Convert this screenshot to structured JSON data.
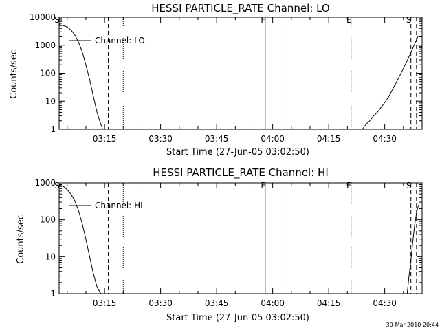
{
  "chart_data": [
    {
      "type": "line",
      "title": "HESSI PARTICLE_RATE Channel: LO",
      "xlabel": "Start Time (27-Jun-05 03:02:50)",
      "ylabel": "Counts/sec",
      "yscale": "log",
      "ylim": [
        1,
        10000
      ],
      "xlim": [
        "03:02:50",
        "04:40:00"
      ],
      "grid": false,
      "legend": {
        "position": "top-left",
        "label": "Channel: LO"
      },
      "x_ticks": [
        "03:15",
        "03:30",
        "03:45",
        "04:00",
        "04:15",
        "04:30"
      ],
      "y_ticks": [
        "1",
        "10",
        "100",
        "1000",
        "10000"
      ],
      "x_tick_values": [
        "03:15:00",
        "03:30:00",
        "03:45:00",
        "04:00:00",
        "04:15:00",
        "04:30:00"
      ],
      "y_tick_values": [
        1,
        10,
        100,
        1000,
        10000
      ],
      "series": [
        {
          "name": "Channel: LO",
          "x": [
            "03:02:50",
            "03:04:00",
            "03:05:00",
            "03:06:00",
            "03:07:00",
            "03:08:00",
            "03:09:00",
            "03:10:00",
            "03:11:00",
            "03:12:00",
            "03:13:00",
            "03:14:00",
            "03:14:30",
            "04:24:00",
            "04:25:00",
            "04:26:00",
            "04:27:00",
            "04:28:00",
            "04:29:00",
            "04:30:00",
            "04:31:00",
            "04:32:00",
            "04:33:00",
            "04:34:00",
            "04:35:00",
            "04:36:00",
            "04:37:00",
            "04:38:00",
            "04:39:00"
          ],
          "y": [
            5500,
            5000,
            4500,
            3500,
            2400,
            1300,
            600,
            200,
            60,
            15,
            4,
            1.5,
            1,
            1,
            1.5,
            2,
            3,
            4,
            6,
            9,
            14,
            25,
            45,
            80,
            150,
            280,
            550,
            1100,
            2200
          ]
        }
      ],
      "annotations": [
        {
          "text": "S",
          "time": "03:02:50",
          "line": "none"
        },
        {
          "text": "",
          "time": "03:16:00",
          "line": "dashed"
        },
        {
          "text": "",
          "time": "03:20:00",
          "line": "dotted"
        },
        {
          "text": "F",
          "time": "03:58:00",
          "line": "solid"
        },
        {
          "text": "",
          "time": "04:02:00",
          "line": "solid"
        },
        {
          "text": "E",
          "time": "04:21:00",
          "line": "dotted"
        },
        {
          "text": "S",
          "time": "04:37:00",
          "line": "dashed"
        },
        {
          "text": "",
          "time": "04:38:30",
          "line": "dashed"
        }
      ]
    },
    {
      "type": "line",
      "title": "HESSI PARTICLE_RATE Channel: HI",
      "xlabel": "Start Time (27-Jun-05 03:02:50)",
      "ylabel": "Counts/sec",
      "yscale": "log",
      "ylim": [
        1,
        1000
      ],
      "xlim": [
        "03:02:50",
        "04:40:00"
      ],
      "grid": false,
      "legend": {
        "position": "top-left",
        "label": "Channel: HI"
      },
      "x_ticks": [
        "03:15",
        "03:30",
        "03:45",
        "04:00",
        "04:15",
        "04:30"
      ],
      "y_ticks": [
        "1",
        "10",
        "100",
        "1000"
      ],
      "x_tick_values": [
        "03:15:00",
        "03:30:00",
        "03:45:00",
        "04:00:00",
        "04:15:00",
        "04:30:00"
      ],
      "y_tick_values": [
        1,
        10,
        100,
        1000
      ],
      "series": [
        {
          "name": "Channel: HI",
          "x": [
            "03:02:50",
            "03:04:00",
            "03:05:00",
            "03:06:00",
            "03:07:00",
            "03:08:00",
            "03:09:00",
            "03:10:00",
            "03:11:00",
            "03:12:00",
            "03:13:00",
            "03:14:00",
            "04:36:00",
            "04:36:30",
            "04:37:00",
            "04:37:30",
            "04:38:00",
            "04:38:30",
            "04:39:00"
          ],
          "y": [
            900,
            800,
            650,
            500,
            330,
            180,
            80,
            30,
            10,
            3.5,
            1.5,
            1,
            1,
            3,
            8,
            25,
            70,
            150,
            250
          ]
        }
      ],
      "annotations": [
        {
          "text": "S",
          "time": "03:02:50",
          "line": "none"
        },
        {
          "text": "",
          "time": "03:16:00",
          "line": "dashed"
        },
        {
          "text": "",
          "time": "03:20:00",
          "line": "dotted"
        },
        {
          "text": "F",
          "time": "03:58:00",
          "line": "solid"
        },
        {
          "text": "",
          "time": "04:02:00",
          "line": "solid"
        },
        {
          "text": "E",
          "time": "04:21:00",
          "line": "dotted"
        },
        {
          "text": "S",
          "time": "04:37:00",
          "line": "dashed"
        },
        {
          "text": "",
          "time": "04:38:30",
          "line": "dashed"
        }
      ]
    }
  ],
  "footer": {
    "timestamp": "30-Mar-2010 20:44"
  }
}
